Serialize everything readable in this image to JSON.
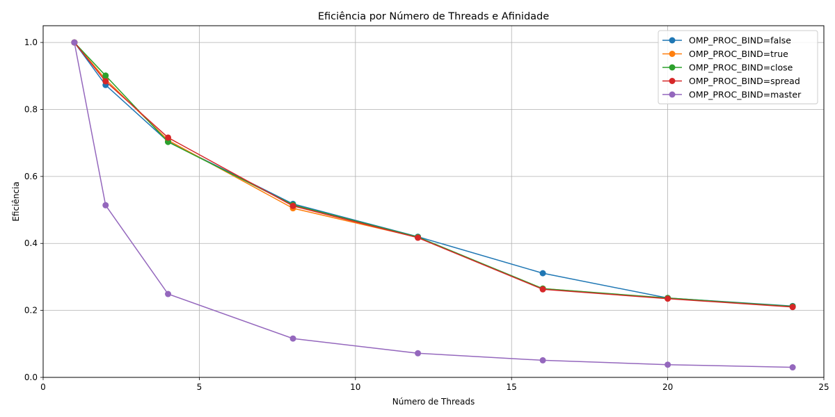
{
  "chart_data": {
    "type": "line",
    "title": "Eficiência por Número de Threads e Afinidade",
    "xlabel": "Número de Threads",
    "ylabel": "Eficiência",
    "x": [
      1,
      2,
      4,
      8,
      12,
      16,
      20,
      24
    ],
    "xlim": [
      0,
      25
    ],
    "ylim": [
      0,
      1.05
    ],
    "xticks": [
      0,
      5,
      10,
      15,
      20,
      25
    ],
    "yticks": [
      0.0,
      0.2,
      0.4,
      0.6,
      0.8,
      1.0
    ],
    "grid": true,
    "legend_position": "top-right",
    "series": [
      {
        "name": "OMP_PROC_BIND=false",
        "color": "#1f77b4",
        "values": [
          1.0,
          0.873,
          0.704,
          0.518,
          0.42,
          0.311,
          0.237,
          0.213
        ]
      },
      {
        "name": "OMP_PROC_BIND=true",
        "color": "#ff7f0e",
        "values": [
          1.0,
          0.89,
          0.708,
          0.505,
          0.418,
          0.265,
          0.236,
          0.211
        ]
      },
      {
        "name": "OMP_PROC_BIND=close",
        "color": "#2ca02c",
        "values": [
          1.0,
          0.901,
          0.703,
          0.515,
          0.419,
          0.265,
          0.237,
          0.212
        ]
      },
      {
        "name": "OMP_PROC_BIND=spread",
        "color": "#d62728",
        "values": [
          1.0,
          0.884,
          0.716,
          0.512,
          0.417,
          0.263,
          0.235,
          0.21
        ]
      },
      {
        "name": "OMP_PROC_BIND=master",
        "color": "#9467bd",
        "values": [
          1.0,
          0.514,
          0.249,
          0.116,
          0.072,
          0.051,
          0.038,
          0.03
        ]
      }
    ]
  }
}
